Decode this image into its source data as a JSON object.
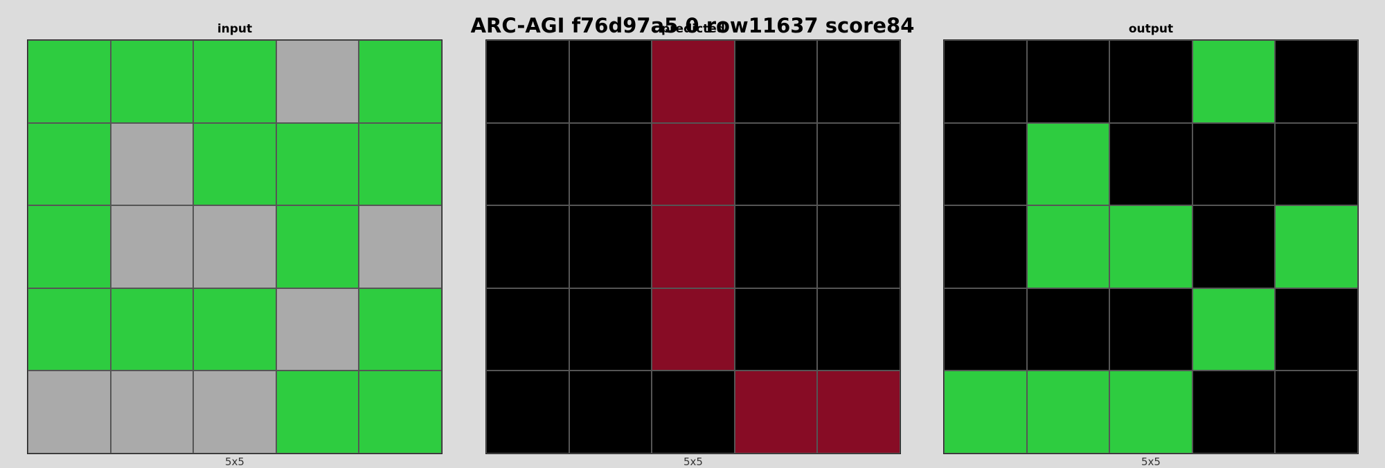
{
  "title": "ARC-AGI f76d97a5 0 row11637 score84",
  "palette": {
    "0": "#000000",
    "3": "#2ecc40",
    "5": "#aaaaaa",
    "9": "#870c25"
  },
  "panels": [
    {
      "label": "input",
      "size": "5x5",
      "grid": [
        [
          3,
          3,
          3,
          5,
          3
        ],
        [
          3,
          5,
          3,
          3,
          3
        ],
        [
          3,
          5,
          5,
          3,
          5
        ],
        [
          3,
          3,
          3,
          5,
          3
        ],
        [
          5,
          5,
          5,
          3,
          3
        ]
      ]
    },
    {
      "label": "predicted",
      "size": "5x5",
      "grid": [
        [
          0,
          0,
          9,
          0,
          0
        ],
        [
          0,
          0,
          9,
          0,
          0
        ],
        [
          0,
          0,
          9,
          0,
          0
        ],
        [
          0,
          0,
          9,
          0,
          0
        ],
        [
          0,
          0,
          0,
          9,
          9
        ]
      ]
    },
    {
      "label": "output",
      "size": "5x5",
      "grid": [
        [
          0,
          0,
          0,
          3,
          0
        ],
        [
          0,
          3,
          0,
          0,
          0
        ],
        [
          0,
          3,
          3,
          0,
          3
        ],
        [
          0,
          0,
          0,
          3,
          0
        ],
        [
          3,
          3,
          3,
          0,
          0
        ]
      ]
    }
  ]
}
